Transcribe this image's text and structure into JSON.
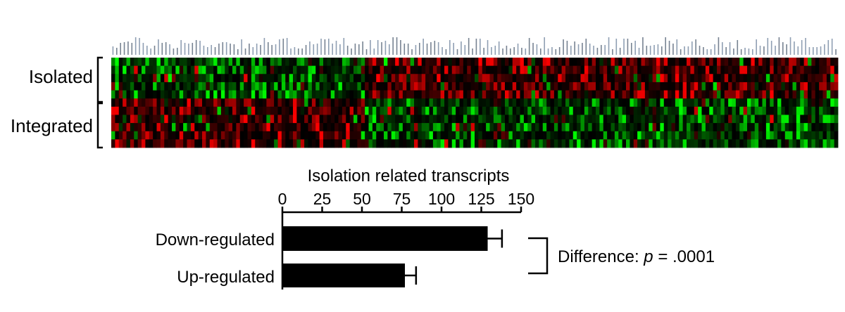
{
  "heatmap": {
    "row_groups": [
      {
        "label": "Isolated",
        "rows": 5
      },
      {
        "label": "Integrated",
        "rows": 6
      }
    ],
    "columns": 192,
    "block_split_column": 67,
    "color_scale": {
      "low": "#00ff00",
      "mid": "#000000",
      "high": "#ff0000"
    }
  },
  "chart_data": [
    {
      "type": "heatmap",
      "rows": [
        "Isolated",
        "Isolated",
        "Isolated",
        "Isolated",
        "Isolated",
        "Integrated",
        "Integrated",
        "Integrated",
        "Integrated",
        "Integrated",
        "Integrated"
      ],
      "pattern": "Left block of transcripts green (low) in Isolated rows and red (high) in Integrated rows; right block red in Isolated rows and green in Integrated rows"
    },
    {
      "type": "bar",
      "orientation": "horizontal",
      "title": "Isolation related transcripts",
      "categories": [
        "Down-regulated",
        "Up-regulated"
      ],
      "values": [
        129,
        77
      ],
      "errors": [
        9,
        7
      ],
      "xlim": [
        0,
        150
      ],
      "xticks": [
        "0",
        "25",
        "50",
        "75",
        "100",
        "125",
        "150"
      ],
      "annotation": {
        "text_prefix": "Difference: ",
        "italic_symbol": "p",
        "text_suffix": " = .0001"
      }
    }
  ]
}
